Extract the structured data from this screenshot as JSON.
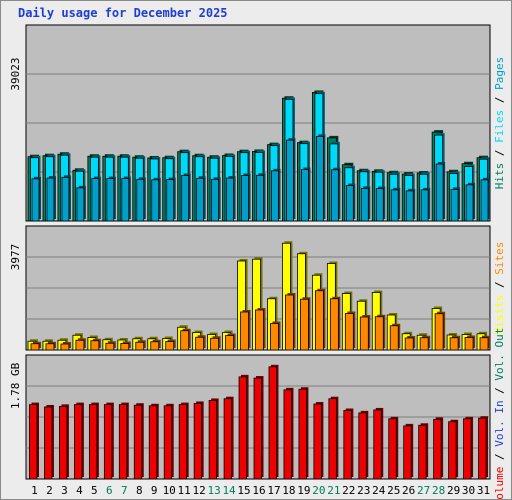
{
  "title": "Daily usage for December 2025",
  "colors": {
    "hits": "#00805c",
    "files": "#00d8f8",
    "pages": "#00a0c8",
    "visits": "#ffff00",
    "sites": "#ff8800",
    "volume": "#ee0000",
    "kbin": "#2244cc",
    "kbout": "#008060",
    "panel_bg": "#bebebe",
    "grid": "#7d7d7d",
    "weekend_text": "#007a5a",
    "weekday_text": "#000000"
  },
  "chart_data": [
    {
      "type": "bar",
      "name": "hits-files-pages",
      "categories": [
        "1",
        "2",
        "3",
        "4",
        "5",
        "6",
        "7",
        "8",
        "9",
        "10",
        "11",
        "12",
        "13",
        "14",
        "15",
        "16",
        "17",
        "18",
        "19",
        "20",
        "21",
        "22",
        "23",
        "24",
        "25",
        "26",
        "27",
        "28",
        "29",
        "30",
        "31"
      ],
      "scale_label": "39023",
      "ylim": [
        0,
        78046
      ],
      "series": [
        {
          "name": "Hits",
          "values": [
            25600,
            26000,
            26600,
            20200,
            25800,
            25800,
            25800,
            25400,
            25100,
            25200,
            27600,
            26000,
            25400,
            26100,
            27600,
            27700,
            30400,
            48900,
            31200,
            51200,
            33100,
            22400,
            20000,
            19800,
            19200,
            18700,
            19100,
            35400,
            19600,
            22800,
            25200
          ]
        },
        {
          "name": "Files",
          "values": [
            25200,
            25600,
            26200,
            19800,
            25400,
            25400,
            25400,
            25000,
            24700,
            24800,
            27200,
            25600,
            25000,
            25700,
            27200,
            27300,
            30000,
            48400,
            30800,
            50700,
            30700,
            21200,
            19600,
            19400,
            18600,
            18100,
            18600,
            34200,
            18900,
            21700,
            24600
          ]
        },
        {
          "name": "Pages",
          "values": [
            16800,
            17100,
            17400,
            13200,
            16900,
            16900,
            16900,
            16600,
            16400,
            16500,
            18100,
            17000,
            16600,
            17100,
            18100,
            18200,
            20000,
            32200,
            20500,
            33700,
            20400,
            14100,
            13000,
            12900,
            12400,
            12000,
            12400,
            22700,
            12600,
            14400,
            16400
          ]
        }
      ]
    },
    {
      "type": "bar",
      "name": "visits-sites",
      "categories": [
        "1",
        "2",
        "3",
        "4",
        "5",
        "6",
        "7",
        "8",
        "9",
        "10",
        "11",
        "12",
        "13",
        "14",
        "15",
        "16",
        "17",
        "18",
        "19",
        "20",
        "21",
        "22",
        "23",
        "24",
        "25",
        "26",
        "27",
        "28",
        "29",
        "30",
        "31"
      ],
      "scale_label": "3977",
      "ylim": [
        0,
        4960
      ],
      "series": [
        {
          "name": "Visits",
          "values": [
            350,
            350,
            390,
            590,
            500,
            410,
            400,
            450,
            450,
            460,
            910,
            700,
            620,
            700,
            3560,
            3630,
            2050,
            4270,
            3850,
            2990,
            3460,
            2260,
            1950,
            2300,
            1400,
            650,
            590,
            1660,
            600,
            620,
            650
          ]
        },
        {
          "name": "Sites",
          "values": [
            250,
            250,
            240,
            390,
            370,
            270,
            260,
            310,
            330,
            340,
            770,
            510,
            470,
            580,
            1520,
            1600,
            1060,
            2200,
            2030,
            2370,
            2050,
            1460,
            1320,
            1330,
            970,
            480,
            490,
            1450,
            490,
            500,
            490
          ]
        }
      ]
    },
    {
      "type": "bar",
      "name": "volume",
      "categories": [
        "1",
        "2",
        "3",
        "4",
        "5",
        "6",
        "7",
        "8",
        "9",
        "10",
        "11",
        "12",
        "13",
        "14",
        "15",
        "16",
        "17",
        "18",
        "19",
        "20",
        "21",
        "22",
        "23",
        "24",
        "25",
        "26",
        "27",
        "28",
        "29",
        "30",
        "31"
      ],
      "scale_label": "1.78 GB",
      "ylim": [
        0,
        2.1
      ],
      "series": [
        {
          "name": "Volume",
          "values": [
            1.26,
            1.22,
            1.23,
            1.26,
            1.26,
            1.26,
            1.26,
            1.25,
            1.24,
            1.24,
            1.26,
            1.28,
            1.33,
            1.36,
            1.73,
            1.71,
            1.9,
            1.51,
            1.52,
            1.27,
            1.36,
            1.16,
            1.12,
            1.17,
            1.02,
            0.9,
            0.91,
            1.01,
            0.97,
            1.02,
            1.03
          ]
        }
      ]
    }
  ],
  "weekend_days": [
    6,
    7,
    13,
    14,
    20,
    21,
    27,
    28
  ],
  "legends": {
    "top": [
      {
        "text": "Hits",
        "color": "#00805c"
      },
      {
        "text": " / ",
        "color": "#000000"
      },
      {
        "text": "Files",
        "color": "#00d8f8"
      },
      {
        "text": " / ",
        "color": "#000000"
      },
      {
        "text": "Pages",
        "color": "#00a0c8"
      }
    ],
    "middle": [
      {
        "text": "Visits",
        "color": "#ffff00"
      },
      {
        "text": " / ",
        "color": "#000000"
      },
      {
        "text": "Sites",
        "color": "#ff8800"
      }
    ],
    "bottom": [
      {
        "text": "Volume",
        "color": "#ee0000"
      },
      {
        "text": " / ",
        "color": "#000000"
      },
      {
        "text": "Vol. In",
        "color": "#2244cc"
      },
      {
        "text": " / ",
        "color": "#000000"
      },
      {
        "text": "Vol. Out",
        "color": "#008060"
      }
    ]
  }
}
